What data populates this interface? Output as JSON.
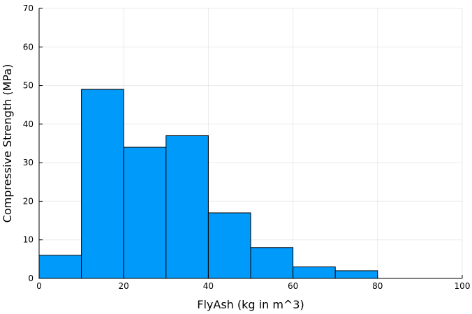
{
  "chart_data": {
    "type": "bar",
    "subtype": "histogram",
    "xlabel": "FlyAsh (kg in m^3)",
    "ylabel": "Compressive Strength (MPa)",
    "xlim": [
      0,
      100
    ],
    "ylim": [
      0,
      70
    ],
    "xticks": [
      0,
      20,
      40,
      60,
      80,
      100
    ],
    "yticks": [
      0,
      10,
      20,
      30,
      40,
      50,
      60,
      70
    ],
    "bins": [
      {
        "x0": 0,
        "x1": 10,
        "value": 6
      },
      {
        "x0": 10,
        "x1": 20,
        "value": 49
      },
      {
        "x0": 20,
        "x1": 30,
        "value": 34
      },
      {
        "x0": 30,
        "x1": 40,
        "value": 37
      },
      {
        "x0": 40,
        "x1": 50,
        "value": 17
      },
      {
        "x0": 50,
        "x1": 60,
        "value": 8
      },
      {
        "x0": 60,
        "x1": 70,
        "value": 3
      },
      {
        "x0": 70,
        "x1": 80,
        "value": 2
      }
    ],
    "bar_color": "#009AFA",
    "edge_color": "#000000",
    "grid": true,
    "legend": false
  }
}
